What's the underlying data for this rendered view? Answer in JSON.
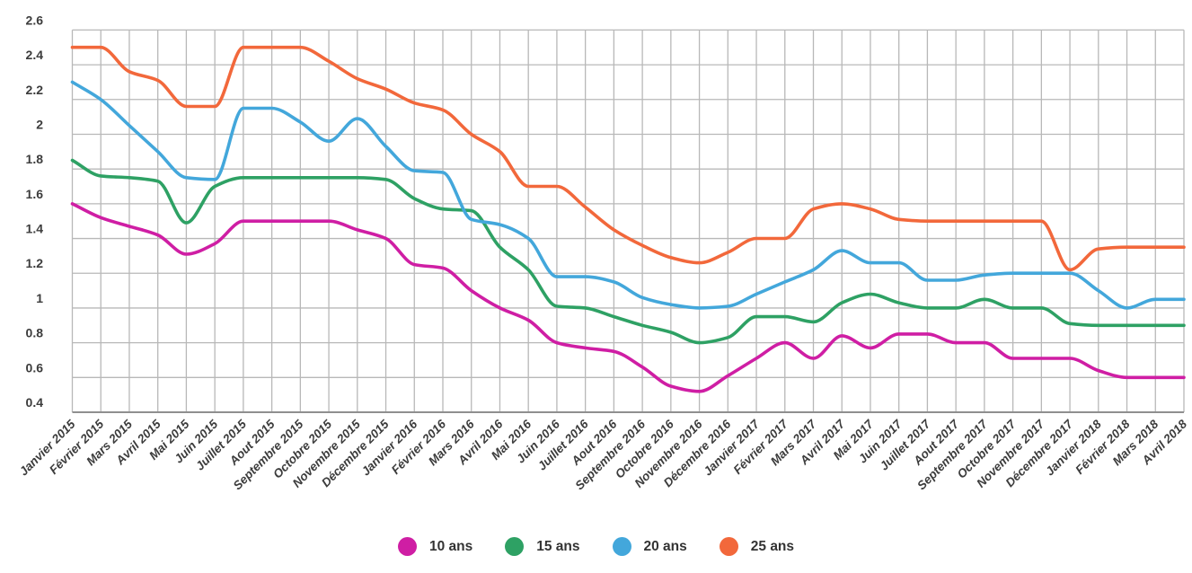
{
  "chart_data": {
    "type": "line",
    "title": "",
    "xlabel": "",
    "ylabel": "",
    "ylim": [
      0.4,
      2.6
    ],
    "y_ticks": [
      2.6,
      2.4,
      2.2,
      2,
      1.8,
      1.6,
      1.4,
      1.2,
      1,
      0.8,
      0.6,
      0.4
    ],
    "grid": true,
    "legend_position": "bottom",
    "x_labels_rotation_deg": -45,
    "categories": [
      "Janvier 2015",
      "Février 2015",
      "Mars 2015",
      "Avril 2015",
      "Mai 2015",
      "Juin 2015",
      "Juillet 2015",
      "Aout 2015",
      "Septembre 2015",
      "Octobre 2015",
      "Novembre 2015",
      "Décembre 2015",
      "Janvier 2016",
      "Février 2016",
      "Mars 2016",
      "Avril 2016",
      "Mai 2016",
      "Juin 2016",
      "Juillet 2016",
      "Aout 2016",
      "Septembre 2016",
      "Octobre 2016",
      "Novembre 2016",
      "Décembre 2016",
      "Janvier 2017",
      "Février 2017",
      "Mars 2017",
      "Avril 2017",
      "Mai 2017",
      "Juin 2017",
      "Juillet 2017",
      "Aout 2017",
      "Septembre 2017",
      "Octobre 2017",
      "Novembre 2017",
      "Décembre 2017",
      "Janvier 2018",
      "Février 2018",
      "Mars 2018",
      "Avril 2018"
    ],
    "series": [
      {
        "name": "10 ans",
        "color": "#cf1ea4",
        "values": [
          1.6,
          1.52,
          1.47,
          1.42,
          1.31,
          1.37,
          1.5,
          1.5,
          1.5,
          1.5,
          1.45,
          1.4,
          1.25,
          1.23,
          1.1,
          1.0,
          0.93,
          0.8,
          0.77,
          0.75,
          0.66,
          0.55,
          0.52,
          0.61,
          0.71,
          0.8,
          0.71,
          0.84,
          0.77,
          0.85,
          0.85,
          0.8,
          0.8,
          0.71,
          0.71,
          0.71,
          0.64,
          0.6,
          0.6,
          0.6
        ]
      },
      {
        "name": "15 ans",
        "color": "#2ea164",
        "values": [
          1.85,
          1.76,
          1.75,
          1.73,
          1.49,
          1.7,
          1.75,
          1.75,
          1.75,
          1.75,
          1.75,
          1.74,
          1.63,
          1.57,
          1.56,
          1.35,
          1.22,
          1.01,
          1.0,
          0.95,
          0.9,
          0.86,
          0.8,
          0.83,
          0.95,
          0.95,
          0.92,
          1.03,
          1.08,
          1.03,
          1.0,
          1.0,
          1.05,
          1.0,
          1.0,
          0.91,
          0.9,
          0.9,
          0.9,
          0.9
        ]
      },
      {
        "name": "20 ans",
        "color": "#43a7db",
        "values": [
          2.3,
          2.2,
          2.05,
          1.9,
          1.75,
          1.74,
          2.15,
          2.15,
          2.07,
          1.96,
          2.09,
          1.93,
          1.79,
          1.78,
          1.51,
          1.48,
          1.4,
          1.18,
          1.18,
          1.15,
          1.06,
          1.02,
          1.0,
          1.01,
          1.08,
          1.15,
          1.22,
          1.33,
          1.26,
          1.26,
          1.16,
          1.16,
          1.19,
          1.2,
          1.2,
          1.2,
          1.1,
          1.0,
          1.05,
          1.05
        ]
      },
      {
        "name": "25 ans",
        "color": "#f2683b",
        "values": [
          2.5,
          2.5,
          2.36,
          2.31,
          2.16,
          2.16,
          2.5,
          2.5,
          2.5,
          2.42,
          2.32,
          2.26,
          2.18,
          2.14,
          2.0,
          1.9,
          1.7,
          1.7,
          1.58,
          1.45,
          1.36,
          1.29,
          1.26,
          1.32,
          1.4,
          1.4,
          1.57,
          1.6,
          1.57,
          1.51,
          1.5,
          1.5,
          1.5,
          1.5,
          1.5,
          1.22,
          1.34,
          1.35,
          1.35,
          1.35
        ]
      }
    ],
    "colors": {
      "grid": "#b8b8b8",
      "baseline": "#8f8f8f",
      "tick_text": "#3c3c3c",
      "background": "#ffffff"
    }
  }
}
